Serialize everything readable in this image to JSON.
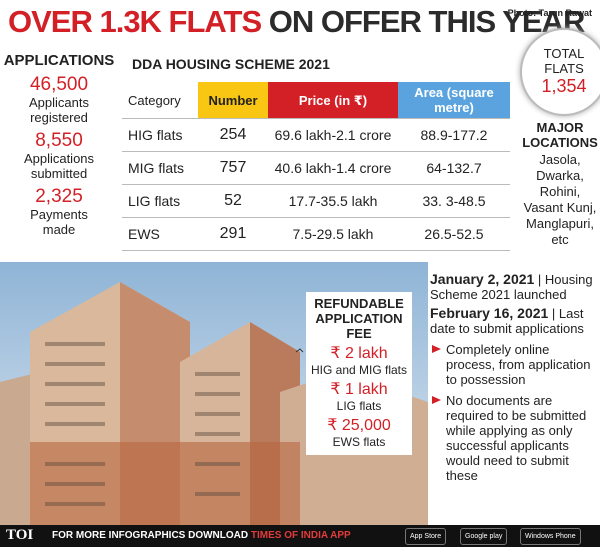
{
  "header": {
    "title_highlight": "OVER 1.3K FLATS",
    "title_rest": "ON OFFER THIS YEAR",
    "photo_credit": "Photo: Tarun Rawat"
  },
  "applications": {
    "heading": "APPLICATIONS",
    "stats": [
      {
        "value": "46,500",
        "label": "Applicants registered"
      },
      {
        "value": "8,550",
        "label": "Applications submitted"
      },
      {
        "value": "2,325",
        "label": "Payments made"
      }
    ]
  },
  "table": {
    "title": "DDA HOUSING SCHEME 2021",
    "columns": [
      "Category",
      "Number",
      "Price (in ₹)",
      "Area (square metre)"
    ],
    "rows": [
      [
        "HIG flats",
        "254",
        "69.6 lakh-2.1 crore",
        "88.9-177.2"
      ],
      [
        "MIG flats",
        "757",
        "40.6 lakh-1.4 crore",
        "64-132.7"
      ],
      [
        "LIG flats",
        "52",
        "17.7-35.5 lakh",
        "33. 3-48.5"
      ],
      [
        "EWS",
        "291",
        "7.5-29.5 lakh",
        "26.5-52.5"
      ]
    ]
  },
  "total": {
    "label": "TOTAL FLATS",
    "value": "1,354"
  },
  "locations": {
    "heading": "MAJOR LOCATIONS",
    "items": [
      "Jasola,",
      "Dwarka,",
      "Rohini,",
      "Vasant Kunj,",
      "Manglapuri,",
      "etc"
    ]
  },
  "fee": {
    "heading": "REFUNDABLE APPLICATION FEE",
    "items": [
      {
        "amount": "₹ 2 lakh",
        "label": "HIG and MIG flats"
      },
      {
        "amount": "₹ 1 lakh",
        "label": "LIG flats"
      },
      {
        "amount": "₹ 25,000",
        "label": "EWS flats"
      }
    ]
  },
  "timeline": {
    "events": [
      {
        "date": "January 2, 2021",
        "text": "| Housing Scheme 2021 launched"
      },
      {
        "date": "February 16, 2021",
        "text": "| Last date to submit applications"
      }
    ],
    "bullets": [
      "Completely online process, from application to possession",
      "No documents are required to be submitted while applying as only successful applicants would need to submit these"
    ]
  },
  "footer": {
    "logo": "TOI",
    "text": "FOR MORE INFOGRAPHICS DOWNLOAD",
    "app": "TIMES OF INDIA APP",
    "badges": [
      "App Store",
      "Google play",
      "Windows Phone"
    ]
  }
}
